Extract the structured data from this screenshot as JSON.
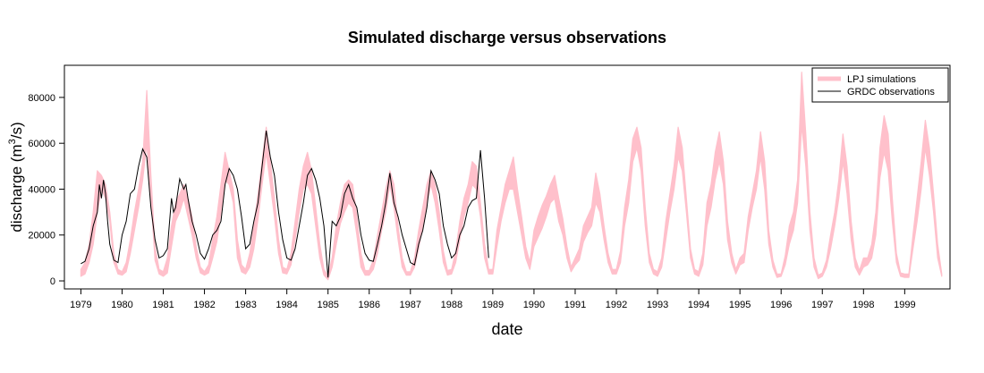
{
  "chart_data": {
    "type": "area",
    "title": "Simulated discharge versus observations",
    "xlabel": "date",
    "ylabel": "discharge (m",
    "ylabel_sup": "3",
    "ylabel_tail": "/s)",
    "xlim": [
      1979.0,
      2000.0
    ],
    "ylim": [
      -3500,
      94000
    ],
    "y_ticks": [
      0,
      20000,
      40000,
      60000,
      80000
    ],
    "x_ticks": [
      1979,
      1980,
      1981,
      1982,
      1983,
      1984,
      1985,
      1986,
      1987,
      1988,
      1989,
      1990,
      1991,
      1992,
      1993,
      1994,
      1995,
      1996,
      1997,
      1998,
      1999
    ],
    "grid": false,
    "legend_position": "top-right",
    "colors": {
      "simulation": "#ffc0cb",
      "observation": "#000000"
    },
    "series": [
      {
        "name": "LPJ simulations",
        "kind": "band",
        "x": [
          1979.0,
          1979.1,
          1979.2,
          1979.3,
          1979.4,
          1979.5,
          1979.6,
          1979.7,
          1979.8,
          1979.9,
          1980.0,
          1980.1,
          1980.2,
          1980.3,
          1980.4,
          1980.5,
          1980.6,
          1980.7,
          1980.8,
          1980.9,
          1981.0,
          1981.1,
          1981.2,
          1981.3,
          1981.4,
          1981.5,
          1981.6,
          1981.7,
          1981.8,
          1981.9,
          1982.0,
          1982.1,
          1982.2,
          1982.3,
          1982.4,
          1982.5,
          1982.6,
          1982.7,
          1982.8,
          1982.9,
          1983.0,
          1983.1,
          1983.2,
          1983.3,
          1983.4,
          1983.5,
          1983.6,
          1983.7,
          1983.8,
          1983.9,
          1984.0,
          1984.1,
          1984.2,
          1984.3,
          1984.4,
          1984.5,
          1984.6,
          1984.7,
          1984.8,
          1984.9,
          1985.0,
          1985.1,
          1985.2,
          1985.3,
          1985.4,
          1985.5,
          1985.6,
          1985.7,
          1985.8,
          1985.9,
          1986.0,
          1986.1,
          1986.2,
          1986.3,
          1986.4,
          1986.5,
          1986.6,
          1986.7,
          1986.8,
          1986.9,
          1987.0,
          1987.1,
          1987.2,
          1987.3,
          1987.4,
          1987.5,
          1987.6,
          1987.7,
          1987.8,
          1987.9,
          1988.0,
          1988.1,
          1988.2,
          1988.3,
          1988.4,
          1988.5,
          1988.6,
          1988.7,
          1988.8,
          1988.9,
          1989.0,
          1989.1,
          1989.2,
          1989.3,
          1989.4,
          1989.5,
          1989.6,
          1989.7,
          1989.8,
          1989.9,
          1990.0,
          1990.1,
          1990.2,
          1990.3,
          1990.4,
          1990.5,
          1990.6,
          1990.7,
          1990.8,
          1990.9,
          1991.0,
          1991.1,
          1991.2,
          1991.3,
          1991.4,
          1991.5,
          1991.6,
          1991.7,
          1991.8,
          1991.9,
          1992.0,
          1992.1,
          1992.2,
          1992.3,
          1992.4,
          1992.5,
          1992.6,
          1992.7,
          1992.8,
          1992.9,
          1993.0,
          1993.1,
          1993.2,
          1993.3,
          1993.4,
          1993.5,
          1993.6,
          1993.7,
          1993.8,
          1993.9,
          1994.0,
          1994.1,
          1994.2,
          1994.3,
          1994.4,
          1994.5,
          1994.6,
          1994.7,
          1994.8,
          1994.9,
          1995.0,
          1995.1,
          1995.2,
          1995.3,
          1995.4,
          1995.5,
          1995.6,
          1995.7,
          1995.8,
          1995.9,
          1996.0,
          1996.1,
          1996.2,
          1996.3,
          1996.4,
          1996.5,
          1996.6,
          1996.7,
          1996.8,
          1996.9,
          1997.0,
          1997.1,
          1997.2,
          1997.3,
          1997.4,
          1997.5,
          1997.6,
          1997.7,
          1997.8,
          1997.9,
          1998.0,
          1998.1,
          1998.2,
          1998.3,
          1998.4,
          1998.5,
          1998.6,
          1998.7,
          1998.8,
          1998.9,
          1999.0,
          1999.1,
          1999.2,
          1999.3,
          1999.4,
          1999.5,
          1999.6,
          1999.7,
          1999.8,
          1999.9
        ],
        "low": [
          2000,
          3000,
          8000,
          16000,
          30000,
          40000,
          36000,
          26000,
          8000,
          3000,
          2500,
          4000,
          12000,
          22000,
          32000,
          44000,
          60000,
          36000,
          9000,
          3000,
          2000,
          3500,
          15000,
          26000,
          30000,
          36000,
          28000,
          20000,
          10000,
          3500,
          2500,
          3500,
          10000,
          17000,
          30000,
          44000,
          42000,
          34000,
          10000,
          4000,
          3000,
          6000,
          14000,
          27000,
          42000,
          56000,
          42000,
          28000,
          12000,
          3500,
          3000,
          7000,
          18000,
          30000,
          40000,
          42000,
          38000,
          24000,
          10000,
          2500,
          500,
          6000,
          16000,
          25000,
          30000,
          34000,
          32000,
          20000,
          6000,
          2500,
          2500,
          5000,
          12000,
          22000,
          30000,
          42000,
          32000,
          18000,
          6000,
          2500,
          2500,
          6000,
          14000,
          24000,
          34000,
          42000,
          34000,
          22000,
          8000,
          2500,
          3000,
          8000,
          18000,
          28000,
          34000,
          42000,
          40000,
          28000,
          10000,
          3000,
          3000,
          15000,
          26000,
          34000,
          40000,
          40000,
          30000,
          20000,
          10000,
          5000,
          15000,
          19000,
          23000,
          28000,
          34000,
          36000,
          26000,
          20000,
          10000,
          4000,
          7000,
          9000,
          17000,
          21000,
          24000,
          34000,
          30000,
          18000,
          8000,
          3000,
          3000,
          8000,
          24000,
          34000,
          52000,
          58000,
          48000,
          24000,
          8000,
          3000,
          2000,
          6000,
          18000,
          30000,
          40000,
          54000,
          48000,
          30000,
          10000,
          3000,
          2000,
          7000,
          24000,
          32000,
          44000,
          52000,
          42000,
          18000,
          8000,
          3000,
          7000,
          8000,
          22000,
          32000,
          40000,
          54000,
          40000,
          16000,
          6000,
          1500,
          2000,
          7000,
          16000,
          22000,
          34000,
          68000,
          50000,
          22000,
          6000,
          1000,
          2000,
          6000,
          14000,
          24000,
          36000,
          52000,
          38000,
          18000,
          6000,
          2500,
          6000,
          7000,
          10000,
          20000,
          45000,
          56000,
          48000,
          26000,
          8000,
          2000,
          1500,
          1500,
          14000,
          26000,
          40000,
          58000,
          46000,
          30000,
          10000,
          2000
        ],
        "high": [
          5000,
          8000,
          16000,
          30000,
          48000,
          46000,
          42000,
          30000,
          12000,
          5000,
          4000,
          8000,
          18000,
          30000,
          40000,
          52000,
          83000,
          46000,
          15000,
          5000,
          4000,
          10000,
          24000,
          34000,
          38000,
          42000,
          36000,
          28000,
          15000,
          6000,
          4000,
          7000,
          18000,
          28000,
          42000,
          56000,
          48000,
          40000,
          18000,
          7000,
          5000,
          12000,
          24000,
          38000,
          52000,
          67000,
          52000,
          36000,
          18000,
          6000,
          5000,
          12000,
          26000,
          40000,
          50000,
          56000,
          48000,
          32000,
          16000,
          5000,
          2000,
          10000,
          24000,
          34000,
          42000,
          44000,
          42000,
          28000,
          12000,
          4500,
          4500,
          9000,
          20000,
          30000,
          40000,
          48000,
          42000,
          24000,
          10000,
          4000,
          4000,
          10000,
          22000,
          32000,
          42000,
          48000,
          42000,
          30000,
          13000,
          4500,
          5000,
          13000,
          26000,
          36000,
          42000,
          52000,
          50000,
          34000,
          16000,
          5000,
          5000,
          22000,
          32000,
          42000,
          48000,
          54000,
          40000,
          28000,
          15000,
          8000,
          22000,
          28000,
          33000,
          37000,
          42000,
          46000,
          36000,
          27000,
          15000,
          6000,
          10000,
          14000,
          24000,
          28000,
          32000,
          47000,
          38000,
          24000,
          12000,
          5000,
          5000,
          13000,
          32000,
          44000,
          62000,
          67000,
          58000,
          32000,
          12000,
          5000,
          4000,
          10000,
          26000,
          38000,
          50000,
          67000,
          58000,
          36000,
          14000,
          5000,
          4000,
          12000,
          34000,
          42000,
          56000,
          65000,
          52000,
          26000,
          12000,
          5000,
          10000,
          12000,
          28000,
          38000,
          48000,
          65000,
          52000,
          22000,
          9000,
          3000,
          3000,
          11000,
          24000,
          30000,
          44000,
          91000,
          64000,
          30000,
          10000,
          2500,
          3500,
          9000,
          20000,
          30000,
          44000,
          64000,
          50000,
          26000,
          10000,
          4500,
          10000,
          10000,
          16000,
          30000,
          58000,
          72000,
          64000,
          36000,
          12000,
          3500,
          3000,
          3000,
          20000,
          36000,
          52000,
          70000,
          58000,
          38000,
          16000,
          3000
        ]
      },
      {
        "name": "GRDC observations",
        "kind": "line",
        "x": [
          1979.0,
          1979.1,
          1979.2,
          1979.3,
          1979.4,
          1979.45,
          1979.5,
          1979.55,
          1979.6,
          1979.65,
          1979.7,
          1979.8,
          1979.9,
          1980.0,
          1980.1,
          1980.2,
          1980.3,
          1980.4,
          1980.5,
          1980.6,
          1980.7,
          1980.8,
          1980.9,
          1981.0,
          1981.1,
          1981.2,
          1981.25,
          1981.3,
          1981.4,
          1981.5,
          1981.55,
          1981.6,
          1981.7,
          1981.8,
          1981.9,
          1982.0,
          1982.1,
          1982.2,
          1982.3,
          1982.4,
          1982.5,
          1982.6,
          1982.7,
          1982.8,
          1982.9,
          1983.0,
          1983.1,
          1983.2,
          1983.3,
          1983.4,
          1983.5,
          1983.6,
          1983.7,
          1983.8,
          1983.9,
          1984.0,
          1984.1,
          1984.2,
          1984.3,
          1984.4,
          1984.5,
          1984.6,
          1984.7,
          1984.8,
          1984.9,
          1985.0,
          1985.1,
          1985.2,
          1985.3,
          1985.4,
          1985.5,
          1985.6,
          1985.7,
          1985.8,
          1985.9,
          1986.0,
          1986.1,
          1986.2,
          1986.3,
          1986.4,
          1986.5,
          1986.6,
          1986.7,
          1986.8,
          1986.9,
          1987.0,
          1987.1,
          1987.2,
          1987.3,
          1987.4,
          1987.5,
          1987.6,
          1987.7,
          1987.8,
          1987.9,
          1988.0,
          1988.1,
          1988.2,
          1988.3,
          1988.4,
          1988.5,
          1988.6,
          1988.7,
          1988.8,
          1988.9
        ],
        "y": [
          7500,
          8500,
          14000,
          24000,
          30000,
          42000,
          36000,
          44000,
          38000,
          26000,
          16000,
          9000,
          8000,
          20000,
          26000,
          38000,
          40000,
          50000,
          57500,
          54000,
          32000,
          18000,
          10000,
          11000,
          14000,
          36000,
          30000,
          32000,
          44500,
          40000,
          42000,
          36000,
          26000,
          20000,
          12000,
          9500,
          14000,
          20000,
          22000,
          26000,
          42000,
          49000,
          46000,
          40000,
          28000,
          14000,
          16000,
          26000,
          34000,
          50000,
          65500,
          54000,
          46000,
          30000,
          18000,
          10000,
          9000,
          14000,
          24000,
          34000,
          46000,
          49000,
          44000,
          36000,
          24000,
          1500,
          26000,
          24000,
          28000,
          38000,
          42000,
          36000,
          32000,
          20000,
          12000,
          9000,
          8500,
          16000,
          24000,
          34000,
          47000,
          34000,
          28000,
          20000,
          14000,
          8000,
          7000,
          16000,
          22000,
          32000,
          48000,
          44000,
          38000,
          24000,
          16000,
          10000,
          12000,
          20000,
          24000,
          32000,
          35000,
          36000,
          57000,
          36000,
          10000
        ]
      }
    ]
  }
}
